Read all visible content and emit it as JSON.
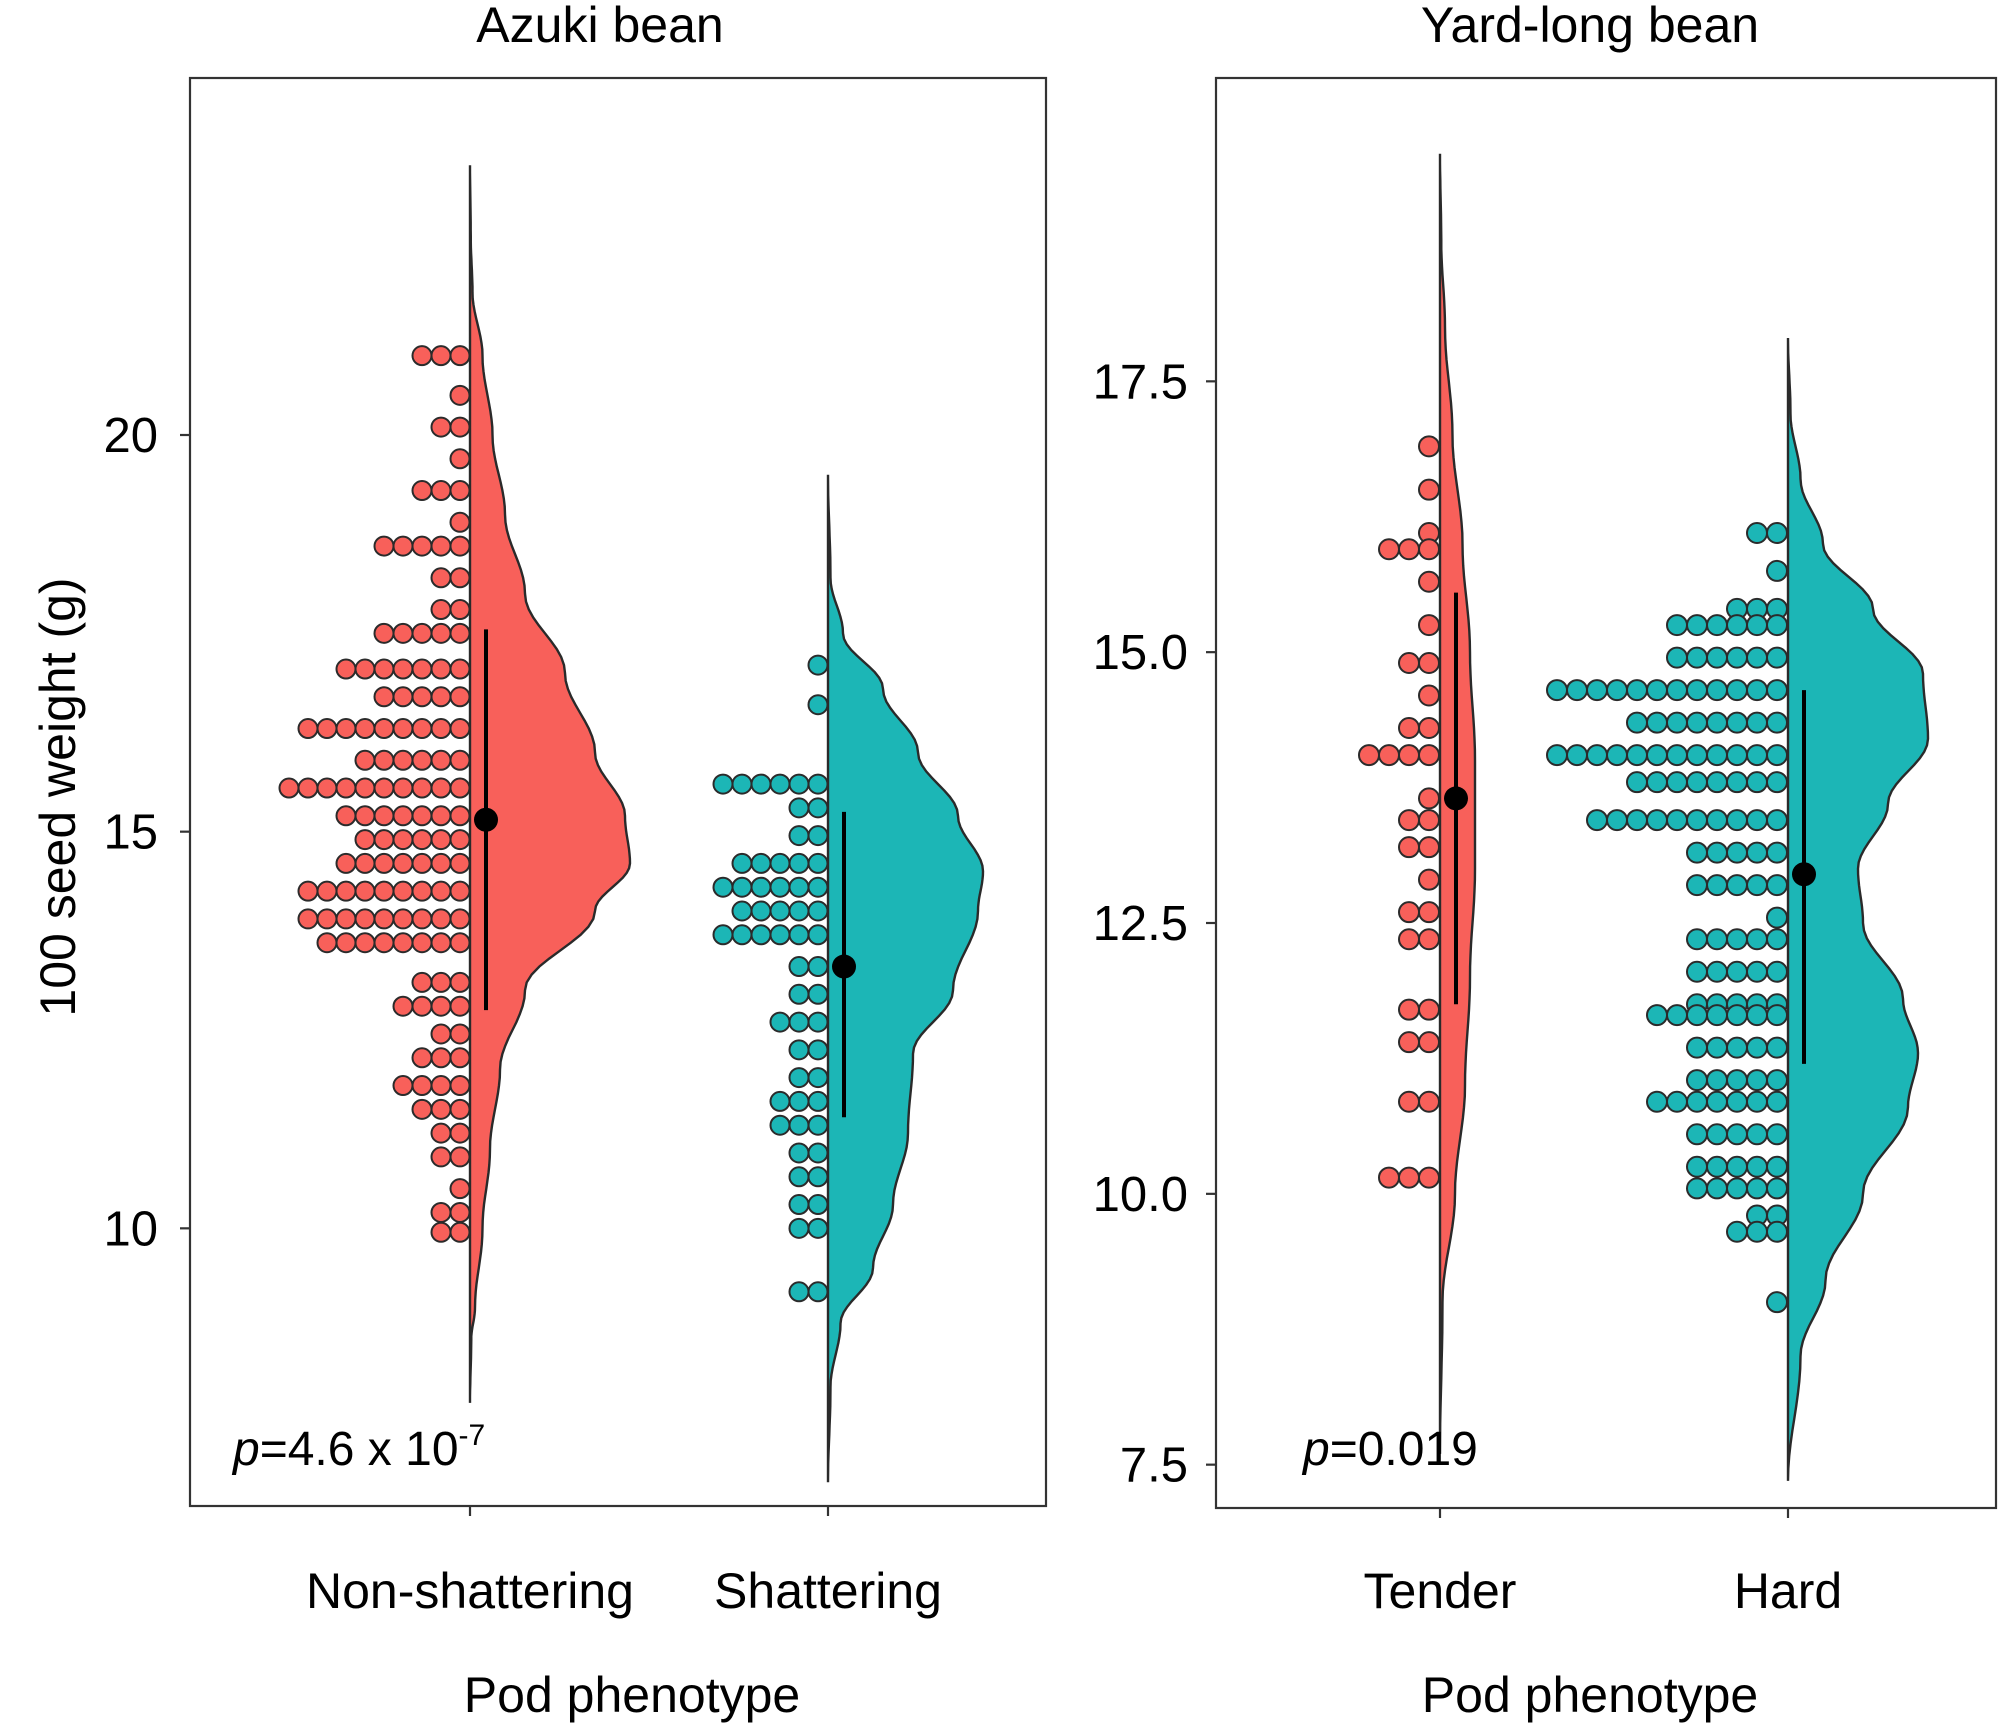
{
  "figure": {
    "ylabel": "100 seed weight (g)"
  },
  "chart_data": [
    {
      "type": "raincloud",
      "title": "Azuki bean",
      "xlabel": "Pod phenotype",
      "ylabel": "100 seed weight (g)",
      "ylim": [
        6.5,
        24.5
      ],
      "yticks": [
        10,
        15,
        20
      ],
      "ytick_labels": [
        "10",
        "15",
        "20"
      ],
      "categories": [
        "Non-shattering",
        "Shattering"
      ],
      "annotation": {
        "prefix": "p",
        "text": "=4.6 x 10",
        "superscript": "-7"
      },
      "groups": [
        {
          "name": "Non-shattering",
          "color": "#f8605a",
          "mean": 15.15,
          "ci": [
            12.75,
            17.55
          ],
          "density_range": [
            7.8,
            23.4
          ],
          "density": [
            [
              7.8,
              0
            ],
            [
              8.6,
              0.005
            ],
            [
              9.0,
              0.02
            ],
            [
              10.0,
              0.05
            ],
            [
              11.0,
              0.08
            ],
            [
              12.0,
              0.12
            ],
            [
              13.0,
              0.22
            ],
            [
              14.0,
              0.5
            ],
            [
              14.6,
              0.64
            ],
            [
              15.2,
              0.62
            ],
            [
              16.0,
              0.5
            ],
            [
              17.0,
              0.38
            ],
            [
              18.0,
              0.22
            ],
            [
              19.0,
              0.14
            ],
            [
              20.0,
              0.09
            ],
            [
              21.0,
              0.05
            ],
            [
              21.8,
              0.01
            ],
            [
              22.5,
              0.003
            ],
            [
              23.4,
              0
            ]
          ],
          "dot_rows": [
            {
              "y": 21.0,
              "n": 3
            },
            {
              "y": 20.5,
              "n": 1
            },
            {
              "y": 20.1,
              "n": 2
            },
            {
              "y": 19.7,
              "n": 1
            },
            {
              "y": 19.3,
              "n": 3
            },
            {
              "y": 18.9,
              "n": 1
            },
            {
              "y": 18.6,
              "n": 5
            },
            {
              "y": 18.2,
              "n": 2
            },
            {
              "y": 17.8,
              "n": 2
            },
            {
              "y": 17.5,
              "n": 5
            },
            {
              "y": 17.05,
              "n": 7
            },
            {
              "y": 16.7,
              "n": 5
            },
            {
              "y": 16.3,
              "n": 9
            },
            {
              "y": 15.9,
              "n": 6
            },
            {
              "y": 15.55,
              "n": 10
            },
            {
              "y": 15.2,
              "n": 7
            },
            {
              "y": 14.9,
              "n": 6
            },
            {
              "y": 14.6,
              "n": 7
            },
            {
              "y": 14.25,
              "n": 9
            },
            {
              "y": 13.9,
              "n": 9
            },
            {
              "y": 13.6,
              "n": 8
            },
            {
              "y": 13.1,
              "n": 3
            },
            {
              "y": 12.8,
              "n": 4
            },
            {
              "y": 12.45,
              "n": 2
            },
            {
              "y": 12.15,
              "n": 3
            },
            {
              "y": 11.8,
              "n": 4
            },
            {
              "y": 11.5,
              "n": 3
            },
            {
              "y": 11.2,
              "n": 2
            },
            {
              "y": 10.9,
              "n": 2
            },
            {
              "y": 10.5,
              "n": 1
            },
            {
              "y": 10.2,
              "n": 2
            },
            {
              "y": 9.95,
              "n": 2
            }
          ]
        },
        {
          "name": "Shattering",
          "color": "#1cb6b6",
          "mean": 13.3,
          "ci": [
            11.4,
            15.25
          ],
          "density_range": [
            6.8,
            19.5
          ],
          "density": [
            [
              6.8,
              0
            ],
            [
              8.0,
              0.01
            ],
            [
              8.8,
              0.05
            ],
            [
              9.5,
              0.18
            ],
            [
              10.3,
              0.26
            ],
            [
              11.2,
              0.32
            ],
            [
              12.2,
              0.34
            ],
            [
              13.0,
              0.5
            ],
            [
              14.0,
              0.6
            ],
            [
              14.5,
              0.62
            ],
            [
              15.2,
              0.52
            ],
            [
              16.0,
              0.36
            ],
            [
              16.8,
              0.22
            ],
            [
              17.5,
              0.06
            ],
            [
              18.2,
              0.01
            ],
            [
              19.5,
              0
            ]
          ],
          "dot_rows": [
            {
              "y": 17.1,
              "n": 1
            },
            {
              "y": 16.6,
              "n": 1
            },
            {
              "y": 15.6,
              "n": 6
            },
            {
              "y": 15.3,
              "n": 2
            },
            {
              "y": 14.95,
              "n": 2
            },
            {
              "y": 14.6,
              "n": 5
            },
            {
              "y": 14.3,
              "n": 6
            },
            {
              "y": 14.0,
              "n": 5
            },
            {
              "y": 13.7,
              "n": 6
            },
            {
              "y": 13.3,
              "n": 2
            },
            {
              "y": 12.95,
              "n": 2
            },
            {
              "y": 12.6,
              "n": 3
            },
            {
              "y": 12.25,
              "n": 2
            },
            {
              "y": 11.9,
              "n": 2
            },
            {
              "y": 11.6,
              "n": 3
            },
            {
              "y": 11.3,
              "n": 3
            },
            {
              "y": 10.95,
              "n": 2
            },
            {
              "y": 10.65,
              "n": 2
            },
            {
              "y": 10.3,
              "n": 2
            },
            {
              "y": 10.0,
              "n": 2
            },
            {
              "y": 9.2,
              "n": 2
            }
          ]
        }
      ]
    },
    {
      "type": "raincloud",
      "title": "Yard-long bean",
      "xlabel": "Pod phenotype",
      "ylabel": "",
      "ylim": [
        7.1,
        20.3
      ],
      "yticks": [
        7.5,
        10.0,
        12.5,
        15.0,
        17.5
      ],
      "ytick_labels": [
        "7.5",
        "10.0",
        "12.5",
        "15.0",
        "17.5"
      ],
      "categories": [
        "Tender",
        "Hard"
      ],
      "annotation": {
        "prefix": "p",
        "text": "=0.019",
        "superscript": ""
      },
      "groups": [
        {
          "name": "Tender",
          "color": "#f8605a",
          "mean": 13.65,
          "ci": [
            11.75,
            15.55
          ],
          "density_range": [
            7.6,
            19.6
          ],
          "density": [
            [
              7.6,
              0
            ],
            [
              9.0,
              0.01
            ],
            [
              10.0,
              0.06
            ],
            [
              11.0,
              0.1
            ],
            [
              12.0,
              0.12
            ],
            [
              13.0,
              0.14
            ],
            [
              14.0,
              0.14
            ],
            [
              15.0,
              0.12
            ],
            [
              16.0,
              0.09
            ],
            [
              17.0,
              0.05
            ],
            [
              18.0,
              0.02
            ],
            [
              18.8,
              0.005
            ],
            [
              19.6,
              0
            ]
          ],
          "dot_rows": [
            {
              "y": 16.9,
              "n": 1
            },
            {
              "y": 16.5,
              "n": 1
            },
            {
              "y": 16.1,
              "n": 1
            },
            {
              "y": 15.95,
              "n": 3
            },
            {
              "y": 15.65,
              "n": 1
            },
            {
              "y": 15.25,
              "n": 1
            },
            {
              "y": 14.9,
              "n": 2
            },
            {
              "y": 14.6,
              "n": 1
            },
            {
              "y": 14.3,
              "n": 2
            },
            {
              "y": 14.05,
              "n": 4
            },
            {
              "y": 13.65,
              "n": 1
            },
            {
              "y": 13.45,
              "n": 2
            },
            {
              "y": 13.2,
              "n": 2
            },
            {
              "y": 12.9,
              "n": 1
            },
            {
              "y": 12.6,
              "n": 2
            },
            {
              "y": 12.35,
              "n": 2
            },
            {
              "y": 11.7,
              "n": 2
            },
            {
              "y": 11.4,
              "n": 2
            },
            {
              "y": 10.85,
              "n": 2
            },
            {
              "y": 10.15,
              "n": 3
            }
          ]
        },
        {
          "name": "Hard",
          "color": "#1cb6b6",
          "mean": 12.95,
          "ci": [
            11.2,
            14.65
          ],
          "density_range": [
            7.35,
            17.9
          ],
          "density": [
            [
              7.35,
              0
            ],
            [
              8.5,
              0.05
            ],
            [
              9.2,
              0.15
            ],
            [
              10.0,
              0.3
            ],
            [
              10.8,
              0.48
            ],
            [
              11.3,
              0.52
            ],
            [
              11.8,
              0.46
            ],
            [
              12.5,
              0.3
            ],
            [
              13.0,
              0.28
            ],
            [
              13.6,
              0.4
            ],
            [
              14.2,
              0.56
            ],
            [
              14.8,
              0.54
            ],
            [
              15.4,
              0.34
            ],
            [
              16.0,
              0.14
            ],
            [
              16.6,
              0.05
            ],
            [
              17.2,
              0.01
            ],
            [
              17.9,
              0
            ]
          ],
          "dot_rows": [
            {
              "y": 16.1,
              "n": 2
            },
            {
              "y": 15.75,
              "n": 1
            },
            {
              "y": 15.4,
              "n": 3
            },
            {
              "y": 15.25,
              "n": 6
            },
            {
              "y": 14.95,
              "n": 6
            },
            {
              "y": 14.65,
              "n": 12
            },
            {
              "y": 14.35,
              "n": 8
            },
            {
              "y": 14.05,
              "n": 12
            },
            {
              "y": 13.8,
              "n": 8
            },
            {
              "y": 13.45,
              "n": 10
            },
            {
              "y": 13.15,
              "n": 5
            },
            {
              "y": 12.85,
              "n": 5
            },
            {
              "y": 12.55,
              "n": 1
            },
            {
              "y": 12.35,
              "n": 5
            },
            {
              "y": 12.05,
              "n": 5
            },
            {
              "y": 11.75,
              "n": 5
            },
            {
              "y": 11.65,
              "n": 7
            },
            {
              "y": 11.35,
              "n": 5
            },
            {
              "y": 11.05,
              "n": 5
            },
            {
              "y": 10.85,
              "n": 7
            },
            {
              "y": 10.55,
              "n": 5
            },
            {
              "y": 10.25,
              "n": 5
            },
            {
              "y": 10.05,
              "n": 5
            },
            {
              "y": 9.8,
              "n": 2
            },
            {
              "y": 9.65,
              "n": 3
            },
            {
              "y": 9.0,
              "n": 1
            }
          ]
        }
      ]
    }
  ]
}
